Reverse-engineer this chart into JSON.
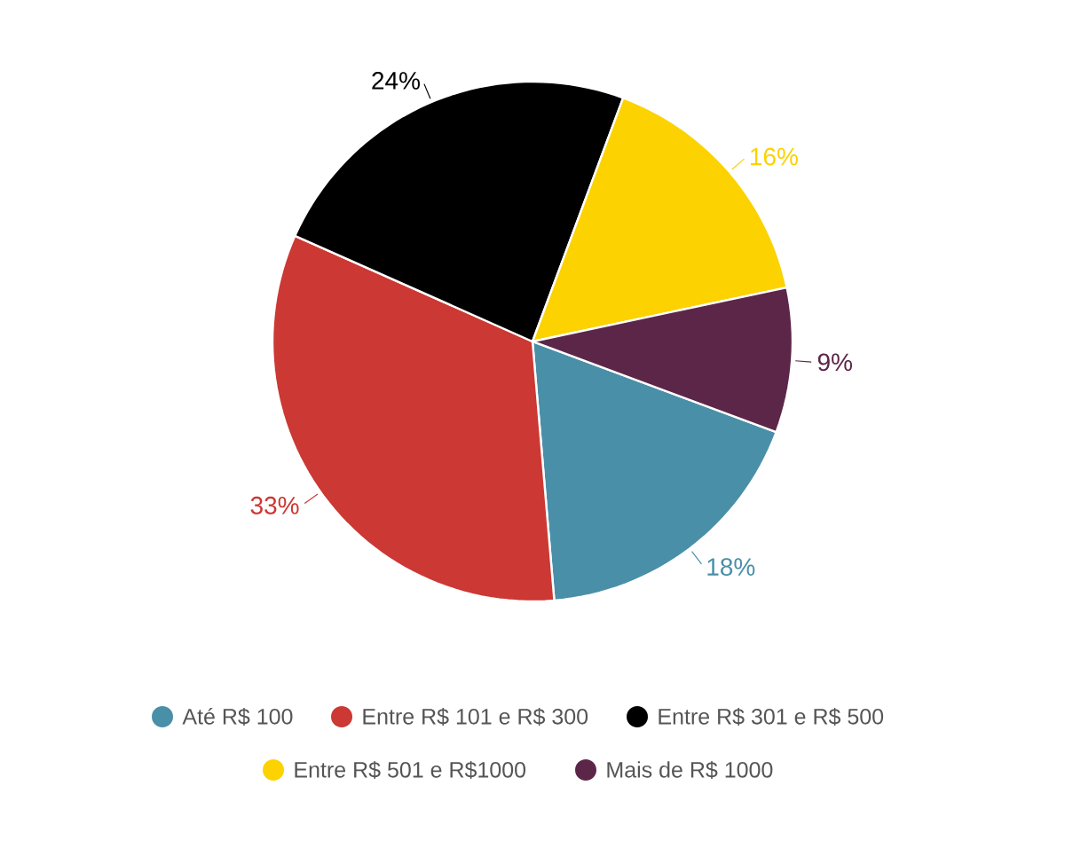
{
  "chart_data": {
    "type": "pie",
    "categories": [
      "Até R$ 100",
      "Entre R$ 101 e R$ 300",
      "Entre R$ 301 e R$ 500",
      "Entre R$ 501 e R$1000",
      "Mais de R$ 1000"
    ],
    "values": [
      18,
      33,
      24,
      16,
      9
    ],
    "value_labels": [
      "18%",
      "33%",
      "24%",
      "16%",
      "9%"
    ],
    "colors": [
      "#4a8fa8",
      "#cc3833",
      "#000000",
      "#fcd200",
      "#5c2649"
    ],
    "legend": "bottom"
  }
}
